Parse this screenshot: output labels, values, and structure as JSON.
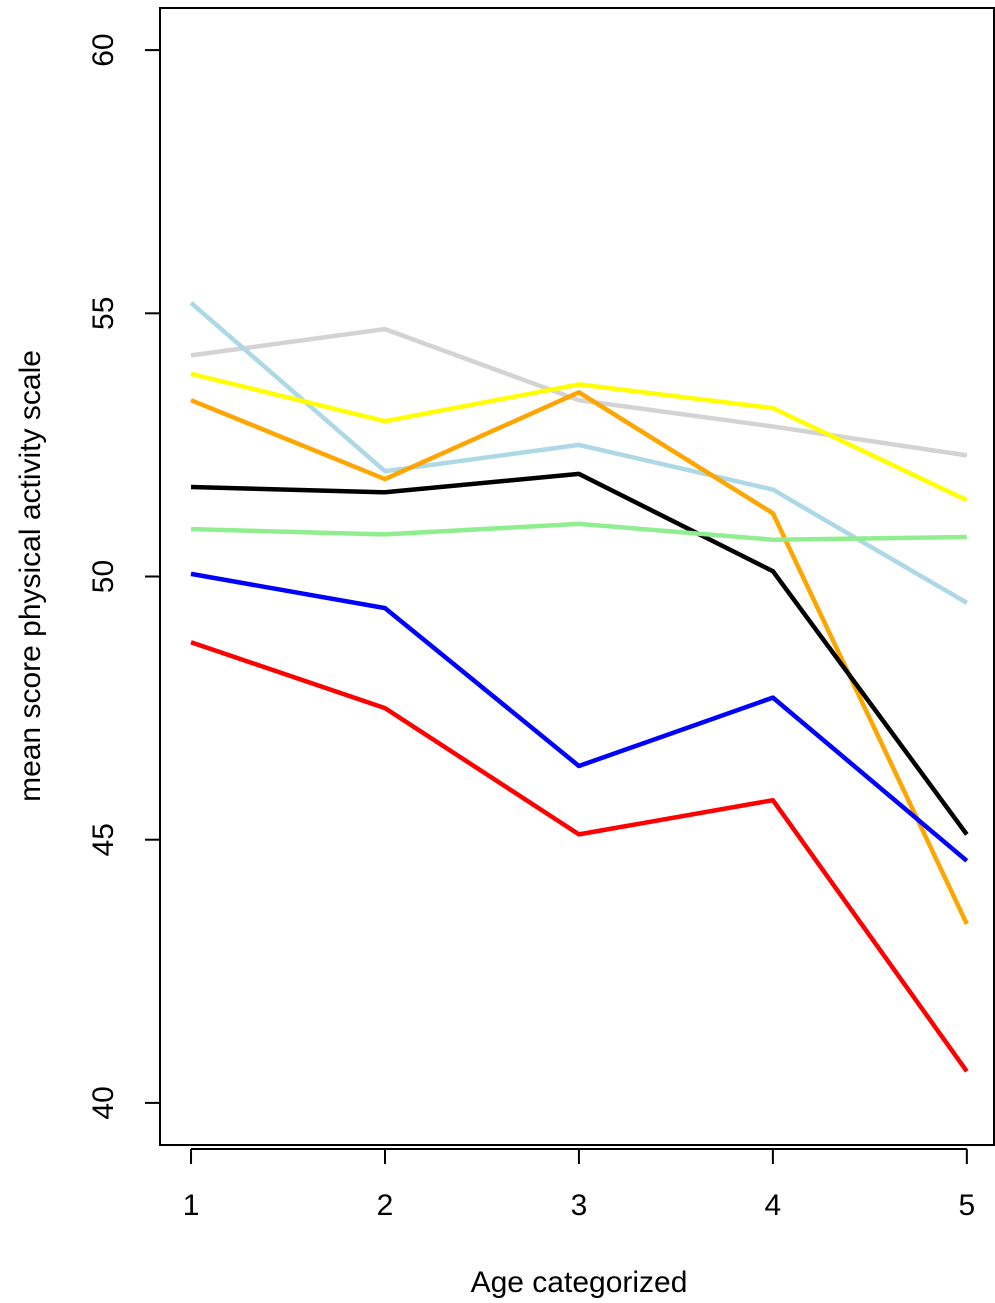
{
  "chart_data": {
    "type": "line",
    "title": "",
    "xlabel": "Age categorized",
    "ylabel": "mean score physical activity scale",
    "x": [
      1,
      2,
      3,
      4,
      5
    ],
    "xlim": [
      0.84,
      5.14
    ],
    "ylim": [
      39.2,
      60.8
    ],
    "x_ticks": [
      1,
      2,
      3,
      4,
      5
    ],
    "y_ticks": [
      40,
      45,
      50,
      55,
      60
    ],
    "grid": false,
    "legend": "none",
    "series": [
      {
        "color": "#d3d3d3",
        "values": [
          54.2,
          54.7,
          53.35,
          52.85,
          52.3
        ]
      },
      {
        "color": "#add8e6",
        "values": [
          55.2,
          52.0,
          52.5,
          51.65,
          49.5
        ]
      },
      {
        "color": "#ffff00",
        "values": [
          53.85,
          52.95,
          53.65,
          53.2,
          51.45
        ]
      },
      {
        "color": "#ffa500",
        "values": [
          53.35,
          51.85,
          53.5,
          51.2,
          43.4
        ]
      },
      {
        "color": "#000000",
        "values": [
          51.7,
          51.6,
          51.95,
          50.1,
          45.1
        ]
      },
      {
        "color": "#90ee90",
        "values": [
          50.9,
          50.8,
          51.0,
          50.7,
          50.75
        ]
      },
      {
        "color": "#0000ff",
        "values": [
          50.05,
          49.4,
          46.4,
          47.7,
          44.6
        ]
      },
      {
        "color": "#ff0000",
        "values": [
          48.75,
          47.5,
          45.1,
          45.75,
          40.6
        ]
      }
    ]
  }
}
